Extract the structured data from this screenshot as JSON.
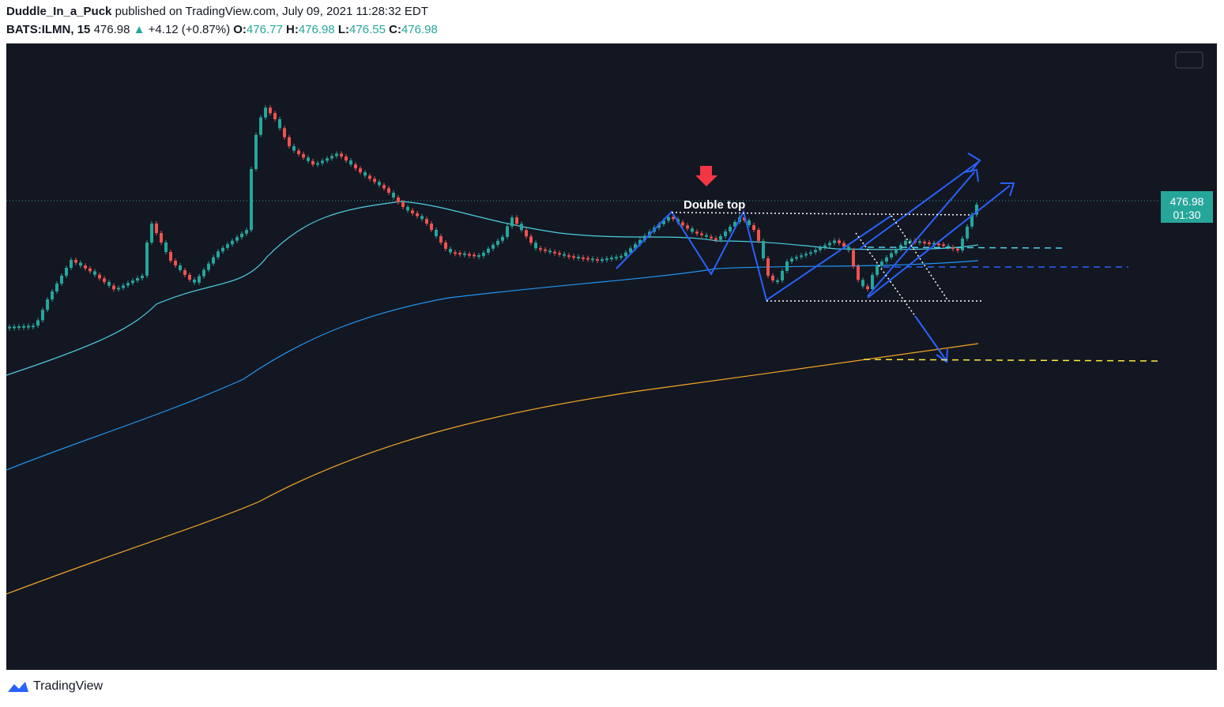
{
  "header": {
    "author": "Duddle_In_a_Puck",
    "published": "published on TradingView.com, July 09, 2021 11:28:32 EDT"
  },
  "quote": {
    "symbol": "BATS:ILMN, 15",
    "last": "476.98",
    "change": "+4.12 (+0.87%)",
    "open_label": "O:",
    "open": "476.77",
    "high_label": "H:",
    "high": "476.98",
    "low_label": "L:",
    "low": "476.55",
    "close_label": "C:",
    "close": "476.98"
  },
  "chart": {
    "annotation": "Double top",
    "price_tag": "476.98",
    "countdown": "01:30"
  },
  "footer": {
    "brand": "TradingView"
  }
}
